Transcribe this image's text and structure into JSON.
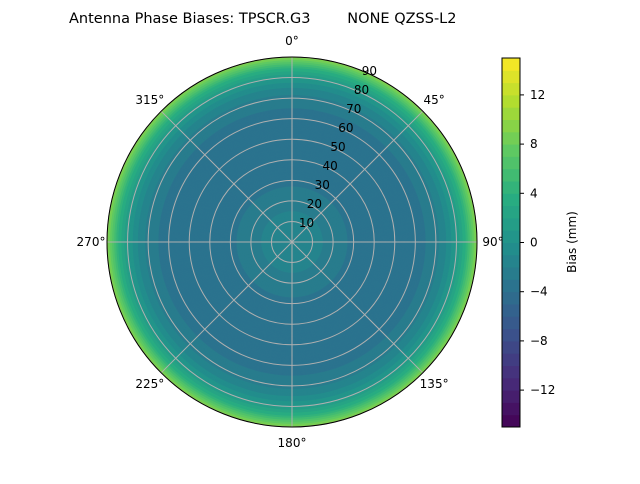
{
  "chart_data": {
    "type": "polar-contour",
    "title": "Antenna Phase Biases: TPSCR.G3        NONE QZSS-L2",
    "angle_tick_labels": [
      "0°",
      "45°",
      "90°",
      "135°",
      "180°",
      "225°",
      "270°",
      "315°"
    ],
    "radial_tick_labels": [
      "10",
      "20",
      "30",
      "40",
      "50",
      "60",
      "70",
      "80",
      "90"
    ],
    "radial_range": [
      0,
      90
    ],
    "grid": true,
    "colormap": "viridis",
    "colorbar": {
      "label": "Bias (mm)",
      "range": [
        -15,
        15
      ],
      "level_step": 1,
      "tick_labels": [
        "−12",
        "−8",
        "−4",
        "0",
        "4",
        "8",
        "12"
      ],
      "tick_values": [
        -12,
        -8,
        -4,
        0,
        4,
        8,
        12
      ]
    },
    "profile": {
      "zenith_deg": [
        0,
        10,
        20,
        30,
        40,
        50,
        60,
        70,
        75,
        80,
        85,
        90
      ],
      "bias_mm": [
        -1,
        -1.5,
        -2.5,
        -3.2,
        -3.6,
        -3.7,
        -3.5,
        -2.5,
        -1,
        1,
        4.5,
        9.5
      ]
    }
  }
}
